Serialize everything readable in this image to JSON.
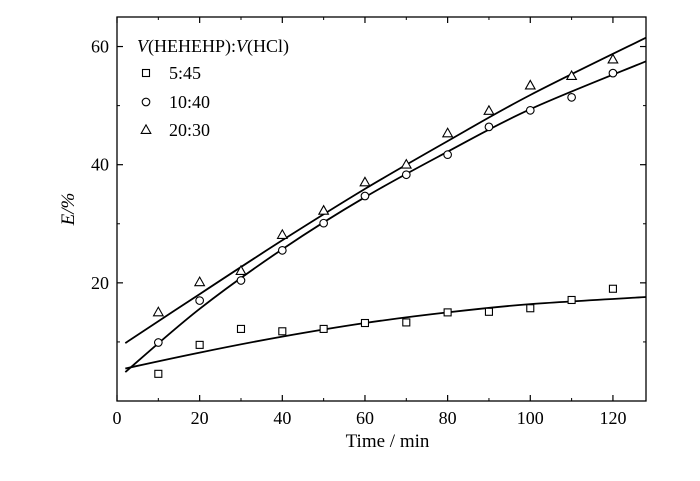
{
  "chart_data": {
    "type": "scatter",
    "title": "",
    "xlabel": "Time / min",
    "ylabel": "E/%",
    "xlim": [
      0,
      128
    ],
    "ylim": [
      0,
      65
    ],
    "xticks": [
      0,
      20,
      40,
      60,
      80,
      100,
      120
    ],
    "yticks": [
      20,
      40,
      60
    ],
    "grid": false,
    "legend": {
      "placement": "top-left",
      "title_parts": [
        "V",
        "(HEHEHP):",
        "V",
        "(HCl)"
      ]
    },
    "series": [
      {
        "name": "5:45",
        "marker": "square",
        "x": [
          10,
          20,
          30,
          40,
          50,
          60,
          70,
          80,
          90,
          100,
          110,
          120
        ],
        "y": [
          4.6,
          9.5,
          12.2,
          11.8,
          12.2,
          13.2,
          13.3,
          15.0,
          15.1,
          15.7,
          17.1,
          19.0
        ],
        "fit": [
          [
            2,
            5.5
          ],
          [
            20,
            8.2
          ],
          [
            40,
            10.9
          ],
          [
            60,
            13.2
          ],
          [
            80,
            15.0
          ],
          [
            100,
            16.4
          ],
          [
            128,
            17.6
          ]
        ]
      },
      {
        "name": "10:40",
        "marker": "circle",
        "x": [
          10,
          20,
          30,
          40,
          50,
          60,
          70,
          80,
          90,
          100,
          110,
          120
        ],
        "y": [
          9.9,
          17.0,
          20.4,
          25.5,
          30.1,
          34.7,
          38.3,
          41.7,
          46.4,
          49.2,
          51.4,
          55.5
        ],
        "fit": [
          [
            2,
            4.9
          ],
          [
            20,
            15.6
          ],
          [
            40,
            25.7
          ],
          [
            60,
            34.5
          ],
          [
            80,
            42.2
          ],
          [
            100,
            49.4
          ],
          [
            128,
            57.5
          ]
        ]
      },
      {
        "name": "20:30",
        "marker": "triangle",
        "x": [
          10,
          20,
          30,
          40,
          50,
          60,
          70,
          80,
          90,
          100,
          110,
          120
        ],
        "y": [
          15.0,
          20.1,
          22.0,
          28.1,
          32.2,
          37.0,
          40.0,
          45.3,
          49.1,
          53.4,
          55.0,
          57.8
        ],
        "fit": [
          [
            2,
            9.8
          ],
          [
            20,
            18.1
          ],
          [
            40,
            27.2
          ],
          [
            60,
            35.9
          ],
          [
            80,
            44.0
          ],
          [
            100,
            51.8
          ],
          [
            128,
            61.5
          ]
        ]
      }
    ]
  }
}
